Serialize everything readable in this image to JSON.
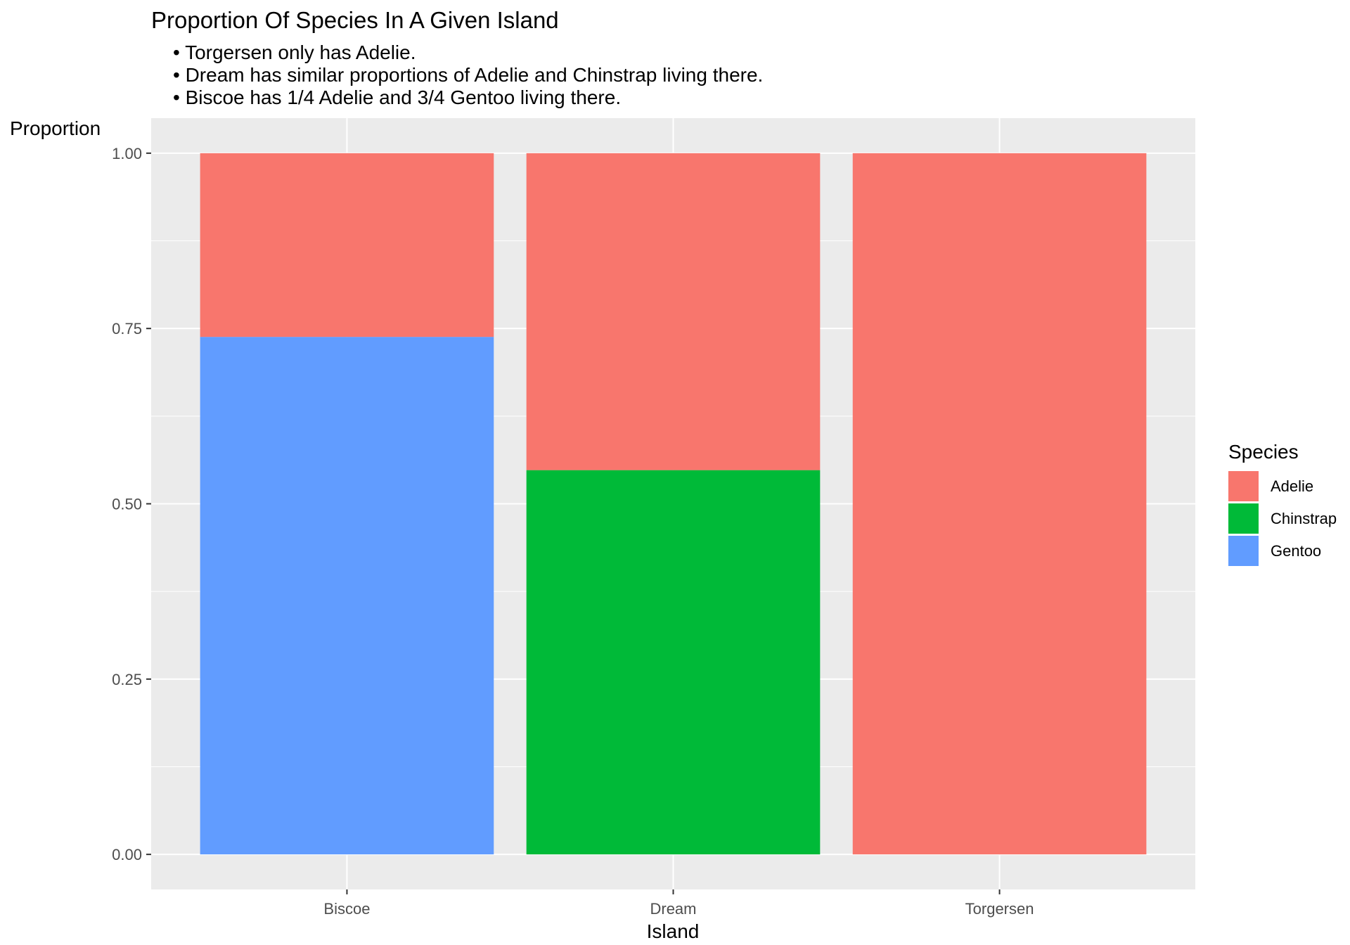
{
  "chart_data": {
    "type": "bar",
    "stacked": true,
    "title": "Proportion Of Species In A Given Island",
    "subtitle_lines": [
      "• Torgersen only has Adelie.",
      "• Dream has similar proportions of Adelie and Chinstrap living there.",
      "• Biscoe has 1/4 Adelie and 3/4 Gentoo living there."
    ],
    "xlabel": "Island",
    "ylabel": "Proportion",
    "categories": [
      "Biscoe",
      "Dream",
      "Torgersen"
    ],
    "ylim": [
      -0.05,
      1.05
    ],
    "yticks": [
      0,
      0.25,
      0.5,
      0.75,
      1
    ],
    "ytick_labels": [
      "0.00",
      "0.25",
      "0.50",
      "0.75",
      "1.00"
    ],
    "grid": true,
    "legend": {
      "title": "Species",
      "position": "right"
    },
    "series": [
      {
        "name": "Adelie",
        "color": "#F8766D",
        "values": [
          0.262,
          0.452,
          1.0
        ]
      },
      {
        "name": "Chinstrap",
        "color": "#00BA38",
        "values": [
          0,
          0.548,
          0
        ]
      },
      {
        "name": "Gentoo",
        "color": "#619CFF",
        "values": [
          0.738,
          0,
          0
        ]
      }
    ],
    "stack_order_bottom_to_top": [
      "Gentoo",
      "Chinstrap",
      "Adelie"
    ]
  }
}
